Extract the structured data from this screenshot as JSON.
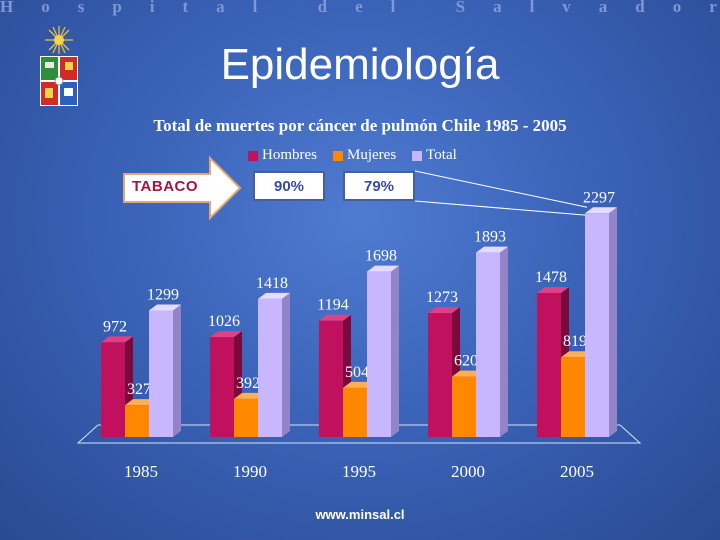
{
  "header": {
    "hospital": "Hospital del Salvador",
    "title": "Epidemiología"
  },
  "annotation": {
    "arrow_label": "TABACO",
    "box1": "90%",
    "box2": "79%"
  },
  "footer": {
    "url": "www.minsal.cl"
  },
  "colors": {
    "hombres": "#c0105e",
    "mujeres": "#ff8800",
    "total": "#c8b6ff"
  },
  "icons": {
    "logo": "university-crest-icon"
  },
  "chart_data": {
    "type": "bar",
    "title": "Total de muertes por cáncer de pulmón Chile 1985 - 2005",
    "categories": [
      "1985",
      "1990",
      "1995",
      "2000",
      "2005"
    ],
    "series": [
      {
        "name": "Hombres",
        "values": [
          972,
          1026,
          1194,
          1273,
          1478
        ]
      },
      {
        "name": "Mujeres",
        "values": [
          327,
          392,
          504,
          620,
          819
        ]
      },
      {
        "name": "Total",
        "values": [
          1299,
          1418,
          1698,
          1893,
          2297
        ]
      }
    ],
    "ylim": [
      0,
      2300
    ],
    "legend": "top",
    "grid": false
  }
}
